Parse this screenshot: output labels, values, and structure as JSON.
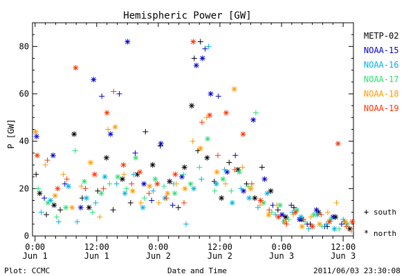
{
  "header": {
    "footer_left": "Plot: CCMC",
    "footer_right": "2011/06/03 23:30:08"
  },
  "legend": {
    "markers": [
      {
        "symbol": "+",
        "label": "south"
      },
      {
        "symbol": "*",
        "label": "north"
      }
    ]
  },
  "chart_data": {
    "type": "scatter",
    "title": "Hemispheric Power [GW]",
    "xlabel": "Date and Time",
    "ylabel": "P [GW]",
    "xlim_hours": [
      -0.5,
      62
    ],
    "ylim": [
      0,
      90
    ],
    "y_ticks": [
      0,
      20,
      40,
      60,
      80
    ],
    "x_ticks": [
      {
        "hour": 0,
        "time": "0:00",
        "date": "Jun 1"
      },
      {
        "hour": 12,
        "time": "12:00",
        "date": "Jun 1"
      },
      {
        "hour": 24,
        "time": "0:00",
        "date": "Jun 2"
      },
      {
        "hour": 36,
        "time": "12:00",
        "date": "Jun 2"
      },
      {
        "hour": 48,
        "time": "0:00",
        "date": "Jun 3"
      },
      {
        "hour": 60,
        "time": "12:00",
        "date": "Jun 3"
      }
    ],
    "series": [
      {
        "name": "METP-02",
        "color": "#000000",
        "points": [
          [
            0.2,
            26,
            "+"
          ],
          [
            0.9,
            18,
            "*"
          ],
          [
            2.2,
            9,
            "+"
          ],
          [
            3.7,
            13,
            "*"
          ],
          [
            4.9,
            11,
            "+"
          ],
          [
            7.6,
            43,
            "*"
          ],
          [
            9.2,
            16,
            "+"
          ],
          [
            10.5,
            12,
            "*"
          ],
          [
            12.2,
            19,
            "+"
          ],
          [
            13.9,
            33,
            "*"
          ],
          [
            15.2,
            11,
            "+"
          ],
          [
            17.0,
            24,
            "*"
          ],
          [
            18.6,
            14,
            "+"
          ],
          [
            19.9,
            26,
            "*"
          ],
          [
            21.5,
            44,
            "+"
          ],
          [
            22.9,
            30,
            "*"
          ],
          [
            24.4,
            38,
            "+"
          ],
          [
            26.2,
            23,
            "*"
          ],
          [
            27.9,
            12,
            "+"
          ],
          [
            29.1,
            29,
            "*"
          ],
          [
            31.0,
            75,
            "+"
          ],
          [
            32.2,
            82,
            "+"
          ],
          [
            30.5,
            55,
            "*"
          ],
          [
            31.7,
            36,
            "+"
          ],
          [
            33.5,
            33,
            "*"
          ],
          [
            34.9,
            23,
            "+"
          ],
          [
            36.3,
            16,
            "*"
          ],
          [
            37.8,
            31,
            "+"
          ],
          [
            39.5,
            28,
            "*"
          ],
          [
            41.2,
            22,
            "+"
          ],
          [
            42.8,
            16,
            "*"
          ],
          [
            44.2,
            29,
            "+"
          ],
          [
            45.9,
            19,
            "*"
          ],
          [
            47.3,
            11,
            "+"
          ],
          [
            48.8,
            8,
            "*"
          ],
          [
            50.4,
            12,
            "+"
          ],
          [
            51.9,
            7,
            "*"
          ],
          [
            53.6,
            5,
            "+"
          ],
          [
            55.2,
            10,
            "*"
          ],
          [
            56.9,
            4,
            "+"
          ],
          [
            58.5,
            8,
            "*"
          ],
          [
            60.2,
            6,
            "+"
          ],
          [
            61.3,
            3,
            "*"
          ]
        ]
      },
      {
        "name": "NOAA-15",
        "color": "#0000cc",
        "points": [
          [
            0.3,
            42,
            "*"
          ],
          [
            1.8,
            16,
            "+"
          ],
          [
            3.5,
            34,
            "*"
          ],
          [
            5.8,
            22,
            "+"
          ],
          [
            8.9,
            12,
            "*"
          ],
          [
            11.4,
            66,
            "*"
          ],
          [
            13.0,
            59,
            "+"
          ],
          [
            14.7,
            43,
            "*"
          ],
          [
            16.4,
            60,
            "+"
          ],
          [
            18.0,
            82,
            "*"
          ],
          [
            19.5,
            35,
            "+"
          ],
          [
            21.2,
            22,
            "*"
          ],
          [
            22.7,
            15,
            "+"
          ],
          [
            24.5,
            39,
            "*"
          ],
          [
            26.8,
            13,
            "+"
          ],
          [
            28.6,
            25,
            "*"
          ],
          [
            31.4,
            72,
            "*"
          ],
          [
            33.1,
            79,
            "+"
          ],
          [
            32.6,
            75,
            "*"
          ],
          [
            34.2,
            60,
            "*"
          ],
          [
            35.7,
            59,
            "+"
          ],
          [
            37.4,
            27,
            "*"
          ],
          [
            39.0,
            34,
            "+"
          ],
          [
            40.6,
            19,
            "*"
          ],
          [
            42.5,
            49,
            "*"
          ],
          [
            44.7,
            24,
            "*"
          ],
          [
            46.3,
            13,
            "+"
          ],
          [
            48.1,
            9,
            "*"
          ],
          [
            49.9,
            13,
            "+"
          ],
          [
            51.5,
            7,
            "*"
          ],
          [
            53.0,
            5,
            "+"
          ],
          [
            54.8,
            11,
            "*"
          ],
          [
            56.4,
            4,
            "+"
          ],
          [
            58.0,
            8,
            "*"
          ],
          [
            59.7,
            5,
            "+"
          ]
        ]
      },
      {
        "name": "NOAA-16",
        "color": "#00b0e0",
        "points": [
          [
            1.2,
            10,
            "+"
          ],
          [
            3.0,
            15,
            "*"
          ],
          [
            4.6,
            6,
            "+"
          ],
          [
            6.5,
            21,
            "*"
          ],
          [
            8.2,
            6,
            "+"
          ],
          [
            10.0,
            16,
            "*"
          ],
          [
            11.8,
            14,
            "+"
          ],
          [
            13.6,
            25,
            "*"
          ],
          [
            15.9,
            22,
            "+"
          ],
          [
            17.5,
            18,
            "*"
          ],
          [
            19.2,
            26,
            "+"
          ],
          [
            21.0,
            12,
            "*"
          ],
          [
            23.0,
            19,
            "+"
          ],
          [
            25.3,
            16,
            "*"
          ],
          [
            27.0,
            22,
            "+"
          ],
          [
            29.4,
            5,
            "+"
          ],
          [
            30.9,
            20,
            "*"
          ],
          [
            32.4,
            24,
            "+"
          ],
          [
            33.8,
            80,
            "+"
          ],
          [
            35.3,
            22,
            "*"
          ],
          [
            36.9,
            28,
            "+"
          ],
          [
            38.4,
            14,
            "*"
          ],
          [
            40.1,
            20,
            "+"
          ],
          [
            41.7,
            16,
            "*"
          ],
          [
            43.4,
            12,
            "+"
          ],
          [
            45.2,
            18,
            "*"
          ],
          [
            46.8,
            9,
            "+"
          ],
          [
            48.5,
            6,
            "*"
          ],
          [
            50.1,
            10,
            "+"
          ],
          [
            51.8,
            8,
            "*"
          ],
          [
            53.3,
            3,
            "+"
          ],
          [
            55.0,
            9,
            "*"
          ],
          [
            56.7,
            5,
            "+"
          ],
          [
            58.3,
            3,
            "*"
          ],
          [
            60.0,
            7,
            "+"
          ]
        ]
      },
      {
        "name": "NOAA-17",
        "color": "#28e070",
        "points": [
          [
            0.6,
            20,
            "+"
          ],
          [
            2.5,
            14,
            "*"
          ],
          [
            4.2,
            8,
            "+"
          ],
          [
            6.0,
            12,
            "*"
          ],
          [
            7.8,
            36,
            "+"
          ],
          [
            9.6,
            23,
            "*"
          ],
          [
            11.2,
            10,
            "+"
          ],
          [
            12.9,
            18,
            "*"
          ],
          [
            14.5,
            22,
            "+"
          ],
          [
            16.1,
            25,
            "*"
          ],
          [
            17.8,
            20,
            "+"
          ],
          [
            19.6,
            33,
            "*"
          ],
          [
            21.3,
            16,
            "+"
          ],
          [
            23.4,
            24,
            "*"
          ],
          [
            25.1,
            21,
            "+"
          ],
          [
            27.2,
            18,
            "*"
          ],
          [
            28.9,
            26,
            "+"
          ],
          [
            30.3,
            22,
            "*"
          ],
          [
            32.0,
            29,
            "+"
          ],
          [
            33.6,
            41,
            "*"
          ],
          [
            35.0,
            19,
            "+"
          ],
          [
            36.6,
            24,
            "*"
          ],
          [
            38.2,
            19,
            "+"
          ],
          [
            39.8,
            27,
            "*"
          ],
          [
            41.5,
            21,
            "+"
          ],
          [
            43.0,
            52,
            "+"
          ],
          [
            44.5,
            14,
            "*"
          ],
          [
            46.1,
            10,
            "+"
          ],
          [
            47.7,
            13,
            "*"
          ],
          [
            49.4,
            7,
            "+"
          ],
          [
            51.0,
            11,
            "*"
          ],
          [
            52.6,
            6,
            "+"
          ],
          [
            54.3,
            9,
            "*"
          ],
          [
            55.9,
            4,
            "+"
          ],
          [
            57.6,
            7,
            "*"
          ],
          [
            59.2,
            3,
            "+"
          ],
          [
            60.8,
            5,
            "*"
          ]
        ]
      },
      {
        "name": "NOAA-18",
        "color": "#ff9900",
        "points": [
          [
            0.1,
            44,
            "*"
          ],
          [
            2.0,
            30,
            "+"
          ],
          [
            3.9,
            17,
            "*"
          ],
          [
            5.5,
            26,
            "+"
          ],
          [
            7.2,
            12,
            "*"
          ],
          [
            9.0,
            21,
            "+"
          ],
          [
            10.8,
            31,
            "*"
          ],
          [
            12.6,
            8,
            "+"
          ],
          [
            14.2,
            45,
            "+"
          ],
          [
            15.6,
            46,
            "*"
          ],
          [
            17.3,
            26,
            "+"
          ],
          [
            19.0,
            19,
            "*"
          ],
          [
            20.6,
            14,
            "+"
          ],
          [
            22.3,
            21,
            "*"
          ],
          [
            24.1,
            14,
            "+"
          ],
          [
            25.8,
            18,
            "*"
          ],
          [
            27.5,
            22,
            "+"
          ],
          [
            29.2,
            20,
            "*"
          ],
          [
            30.7,
            40,
            "+"
          ],
          [
            32.2,
            37,
            "*"
          ],
          [
            33.4,
            50,
            "+"
          ],
          [
            35.4,
            27,
            "*"
          ],
          [
            37.1,
            22,
            "+"
          ],
          [
            38.8,
            62,
            "*"
          ],
          [
            40.4,
            29,
            "+"
          ],
          [
            42.0,
            20,
            "*"
          ],
          [
            43.8,
            13,
            "+"
          ],
          [
            45.5,
            9,
            "*"
          ],
          [
            47.1,
            13,
            "+"
          ],
          [
            48.7,
            6,
            "*"
          ],
          [
            50.3,
            9,
            "+"
          ],
          [
            52.0,
            4,
            "*"
          ],
          [
            53.7,
            8,
            "+"
          ],
          [
            55.4,
            5,
            "*"
          ],
          [
            57.0,
            10,
            "+"
          ],
          [
            58.7,
            14,
            "+"
          ],
          [
            60.4,
            6,
            "*"
          ],
          [
            61.6,
            2,
            "+"
          ]
        ]
      },
      {
        "name": "NOAA-19",
        "color": "#ff3300",
        "points": [
          [
            0.4,
            34,
            "*"
          ],
          [
            2.4,
            32,
            "+"
          ],
          [
            4.4,
            20,
            "*"
          ],
          [
            6.2,
            24,
            "+"
          ],
          [
            7.9,
            71,
            "*"
          ],
          [
            9.8,
            20,
            "+"
          ],
          [
            11.6,
            26,
            "*"
          ],
          [
            13.3,
            20,
            "+"
          ],
          [
            14.0,
            52,
            "*"
          ],
          [
            15.3,
            61,
            "+"
          ],
          [
            17.2,
            30,
            "*"
          ],
          [
            18.8,
            22,
            "+"
          ],
          [
            20.4,
            27,
            "*"
          ],
          [
            22.2,
            18,
            "+"
          ],
          [
            23.8,
            22,
            "*"
          ],
          [
            25.6,
            16,
            "+"
          ],
          [
            27.3,
            26,
            "*"
          ],
          [
            29.0,
            14,
            "+"
          ],
          [
            30.8,
            82,
            "*"
          ],
          [
            32.5,
            48,
            "+"
          ],
          [
            34.0,
            51,
            "*"
          ],
          [
            35.6,
            34,
            "+"
          ],
          [
            37.2,
            52,
            "*"
          ],
          [
            38.9,
            28,
            "+"
          ],
          [
            40.5,
            43,
            "*"
          ],
          [
            42.2,
            22,
            "+"
          ],
          [
            43.9,
            15,
            "*"
          ],
          [
            45.6,
            11,
            "+"
          ],
          [
            47.4,
            8,
            "*"
          ],
          [
            49.0,
            5,
            "+"
          ],
          [
            50.7,
            10,
            "*"
          ],
          [
            52.3,
            7,
            "+"
          ],
          [
            54.0,
            4,
            "*"
          ],
          [
            55.7,
            9,
            "+"
          ],
          [
            57.3,
            6,
            "*"
          ],
          [
            59.0,
            39,
            "*"
          ],
          [
            60.6,
            4,
            "+"
          ],
          [
            61.8,
            6,
            "*"
          ]
        ]
      }
    ]
  }
}
